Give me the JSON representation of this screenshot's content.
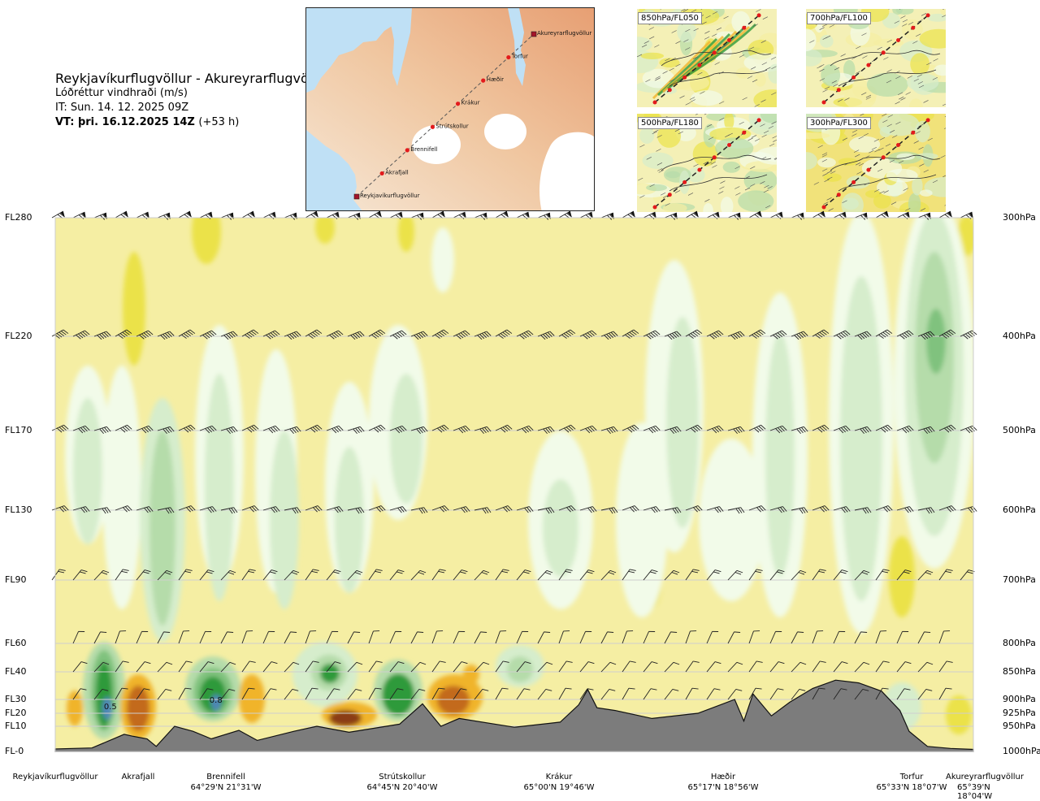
{
  "header": {
    "title": "Reykjavíkurflugvöllur - Akureyrarflugvöllur",
    "subtitle": "Lóðréttur vindhraði (m/s)",
    "issue_time": "IT: Sun. 14. 12. 2025 09Z",
    "valid_time": "VT: þri. 16.12.2025 14Z",
    "valid_offset": "(+53 h)"
  },
  "route_map": {
    "waypoints": [
      {
        "name": "Reykjavíkurflugvöllur",
        "type": "airport"
      },
      {
        "name": "Akrafjall",
        "type": "waypoint"
      },
      {
        "name": "Brennifell",
        "type": "waypoint"
      },
      {
        "name": "Strútskollur",
        "type": "waypoint"
      },
      {
        "name": "Krákur",
        "type": "waypoint"
      },
      {
        "name": "Hæðir",
        "type": "waypoint"
      },
      {
        "name": "Torfur",
        "type": "waypoint"
      },
      {
        "name": "Akureyrarflugvöllur",
        "type": "airport"
      }
    ]
  },
  "mini_maps": [
    {
      "label": "850hPa/FL050"
    },
    {
      "label": "700hPa/FL100"
    },
    {
      "label": "500hPa/FL180"
    },
    {
      "label": "300hPa/FL300"
    }
  ],
  "colors": {
    "sink_weak": "#f5eea3",
    "sink_moderate": "#ebe24a",
    "sink_strong": "#f0b42c",
    "sink_very_strong": "#c36a1e",
    "sink_extreme": "#8b3e12",
    "rise_weak": "#f2fbe9",
    "rise_light": "#d6edcc",
    "rise_moderate": "#b5dcaa",
    "rise_strong": "#80c27e",
    "rise_very_strong": "#2f9a3b",
    "rise_extreme": "#4f86b8",
    "terrain": "#7c7c7c",
    "water": "#bfe0f5",
    "land_low": "#f3ddc6",
    "land_high": "#eba77c",
    "glacier": "#ffffff",
    "route_point": "#e31a1c"
  },
  "chart_data": {
    "type": "heatmap",
    "title": "Reykjavíkurflugvöllur - Akureyrarflugvöllur",
    "subtitle": "Lóðréttur vindhraði (m/s)",
    "y_axis_left": [
      "FL280",
      "FL220",
      "FL170",
      "FL130",
      "FL90",
      "FL60",
      "FL40",
      "FL30",
      "FL20",
      "FL10",
      "FL-0"
    ],
    "y_axis_right": [
      "300hPa",
      "400hPa",
      "500hPa",
      "600hPa",
      "700hPa",
      "800hPa",
      "850hPa",
      "900hPa",
      "925hPa",
      "950hPa",
      "1000hPa"
    ],
    "pressure_levels_hpa": [
      300,
      400,
      500,
      600,
      700,
      800,
      850,
      900,
      925,
      950,
      1000
    ],
    "route_km_total": 200,
    "locations": [
      {
        "name": "Reykjavíkurflugvöllur",
        "coord": "",
        "km": 0
      },
      {
        "name": "Akrafjall",
        "coord": "",
        "km": 19
      },
      {
        "name": "Brennifell",
        "coord": "64°29'N 21°31'W",
        "km": 38
      },
      {
        "name": "Strútskollur",
        "coord": "64°45'N 20°40'W",
        "km": 76
      },
      {
        "name": "Krákur",
        "coord": "65°00'N 19°46'W",
        "km": 115
      },
      {
        "name": "Hæðir",
        "coord": "65°17'N 18°56'W",
        "km": 154
      },
      {
        "name": "Torfur",
        "coord": "65°33'N 18°07'W",
        "km": 188
      },
      {
        "name": "Akureyrarflugvöllur",
        "coord": "65°39'N 18°04'W",
        "km": 200
      }
    ],
    "annotations": [
      {
        "text": "0.5",
        "km": 12,
        "level_hpa": 912
      },
      {
        "text": "0.8",
        "km": 35,
        "level_hpa": 900
      }
    ],
    "terrain_profile": {
      "km": [
        0,
        8,
        15,
        17,
        20,
        22,
        26,
        30,
        34,
        40,
        44,
        52,
        57,
        64,
        75,
        80,
        84,
        88,
        100,
        110,
        114,
        116,
        118,
        122,
        130,
        140,
        148,
        150,
        152,
        156,
        160,
        165,
        170,
        175,
        180,
        184,
        186,
        190,
        195,
        200
      ],
      "pressure_hpa": [
        995,
        993,
        966,
        970,
        975,
        990,
        950,
        960,
        975,
        958,
        978,
        960,
        950,
        962,
        946,
        908,
        950,
        935,
        952,
        942,
        910,
        882,
        915,
        920,
        935,
        925,
        900,
        940,
        890,
        930,
        905,
        880,
        865,
        870,
        885,
        920,
        960,
        990,
        994,
        996
      ]
    },
    "vertical_velocity_cells": [
      {
        "km": 11,
        "level_hpa": 900,
        "value": 0.5
      },
      {
        "km": 35,
        "level_hpa": 900,
        "value": 0.8
      },
      {
        "km": 60,
        "level_hpa": 855,
        "value": 0.35
      },
      {
        "km": 76,
        "level_hpa": 880,
        "value": 0.4
      },
      {
        "km": 104,
        "level_hpa": 845,
        "value": 0.1
      },
      {
        "km": 193,
        "level_hpa": 410,
        "value": 0.1
      },
      {
        "km": 18,
        "level_hpa": 905,
        "value": -0.5
      },
      {
        "km": 65,
        "level_hpa": 915,
        "value": -0.8
      },
      {
        "km": 88,
        "level_hpa": 895,
        "value": -0.6
      },
      {
        "km": 5,
        "level_hpa": 910,
        "value": -0.2
      }
    ],
    "legend": null,
    "grid": "horizontal lines at labelled levels"
  },
  "x_labels": [
    {
      "name": "Reykjavíkurflugvöllur",
      "coord": ""
    },
    {
      "name": "Akrafjall",
      "coord": ""
    },
    {
      "name": "Brennifell",
      "coord": "64°29'N 21°31'W"
    },
    {
      "name": "Strútskollur",
      "coord": "64°45'N 20°40'W"
    },
    {
      "name": "Krákur",
      "coord": "65°00'N 19°46'W"
    },
    {
      "name": "Hæðir",
      "coord": "65°17'N 18°56'W"
    },
    {
      "name": "Torfur",
      "coord": "65°33'N 18°07'W"
    },
    {
      "name": "Akureyrarflugvöllur",
      "coord": "65°39'N 18°04'W"
    }
  ]
}
